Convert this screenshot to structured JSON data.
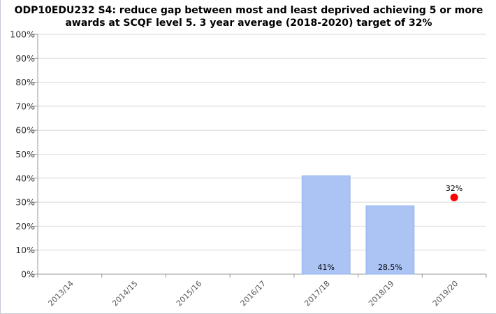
{
  "chart_data": {
    "type": "bar",
    "title_lines": [
      "ODP10EDU232 S4: reduce gap between most and least deprived achieving 5 or more",
      "awards at SCQF level 5. 3 year average (2018-2020) target of 32%"
    ],
    "categories": [
      "2013/14",
      "2014/15",
      "2015/16",
      "2016/17",
      "2017/18",
      "2018/19",
      "2019/20"
    ],
    "series": [
      {
        "type": "bar",
        "values": [
          null,
          null,
          null,
          null,
          41,
          28.5,
          null
        ],
        "labels": [
          "",
          "",
          "",
          "",
          "41%",
          "28.5%",
          ""
        ],
        "color": "#abc4f4",
        "border": "#8fb0ee"
      },
      {
        "type": "point",
        "values": [
          null,
          null,
          null,
          null,
          null,
          null,
          32
        ],
        "labels": [
          "",
          "",
          "",
          "",
          "",
          "",
          "32%"
        ],
        "color": "#ff0000"
      }
    ],
    "ylim": [
      0,
      100
    ],
    "yticks": [
      0,
      10,
      20,
      30,
      40,
      50,
      60,
      70,
      80,
      90,
      100
    ],
    "ytick_labels": [
      "0%",
      "10%",
      "20%",
      "30%",
      "40%",
      "50%",
      "60%",
      "70%",
      "80%",
      "90%",
      "100%"
    ],
    "grid": true,
    "legend": "none"
  }
}
